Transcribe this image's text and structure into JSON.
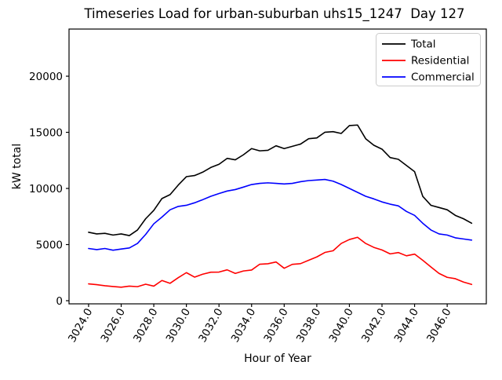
{
  "chart_data": {
    "type": "line",
    "title": "Timeseries Load for urban-suburban uhs15_1247  Day 127",
    "xlabel": "Hour of Year",
    "ylabel": "kW total",
    "legend_position": "upper right",
    "grid": false,
    "axes": {
      "xlim": [
        3022.8,
        3048.4
      ],
      "ylim": [
        -280,
        24200
      ],
      "x_ticks": [
        3024,
        3026,
        3028,
        3030,
        3032,
        3034,
        3036,
        3038,
        3040,
        3042,
        3044,
        3046
      ],
      "x_tick_decimals": 1,
      "x_tick_rotation_deg": 60,
      "y_ticks": [
        0,
        5000,
        10000,
        15000,
        20000
      ]
    },
    "x": [
      3024.0,
      3024.5,
      3025.0,
      3025.5,
      3026.0,
      3026.5,
      3027.0,
      3027.5,
      3028.0,
      3028.5,
      3029.0,
      3029.5,
      3030.0,
      3030.5,
      3031.0,
      3031.5,
      3032.0,
      3032.5,
      3033.0,
      3033.5,
      3034.0,
      3034.5,
      3035.0,
      3035.5,
      3036.0,
      3036.5,
      3037.0,
      3037.5,
      3038.0,
      3038.5,
      3039.0,
      3039.5,
      3040.0,
      3040.5,
      3041.0,
      3041.5,
      3042.0,
      3042.5,
      3043.0,
      3043.5,
      3044.0,
      3044.5,
      3045.0,
      3045.5,
      3046.0,
      3046.5,
      3047.0,
      3047.5
    ],
    "series": [
      {
        "name": "Total",
        "color": "#000000",
        "values": [
          6100,
          5950,
          6000,
          5850,
          5950,
          5800,
          6300,
          7300,
          8050,
          9100,
          9450,
          10300,
          11050,
          11150,
          11450,
          11870,
          12150,
          12680,
          12550,
          13000,
          13550,
          13350,
          13400,
          13800,
          13550,
          13750,
          13950,
          14430,
          14500,
          15010,
          15060,
          14900,
          15600,
          15650,
          14430,
          13850,
          13500,
          12750,
          12600,
          12050,
          11500,
          9300,
          8500,
          8300,
          8100,
          7600,
          7300,
          6900
        ]
      },
      {
        "name": "Residential",
        "color": "#ff0000",
        "values": [
          1500,
          1430,
          1330,
          1260,
          1200,
          1300,
          1250,
          1470,
          1300,
          1800,
          1550,
          2050,
          2500,
          2100,
          2360,
          2540,
          2550,
          2750,
          2430,
          2650,
          2730,
          3250,
          3290,
          3450,
          2890,
          3240,
          3300,
          3600,
          3900,
          4300,
          4450,
          5100,
          5450,
          5650,
          5100,
          4750,
          4520,
          4170,
          4290,
          4000,
          4150,
          3600,
          3010,
          2430,
          2080,
          1960,
          1660,
          1450
        ]
      },
      {
        "name": "Commercial",
        "color": "#0000ff",
        "values": [
          4650,
          4550,
          4650,
          4500,
          4600,
          4700,
          5100,
          5900,
          6850,
          7450,
          8100,
          8400,
          8500,
          8720,
          9000,
          9300,
          9550,
          9770,
          9900,
          10120,
          10350,
          10450,
          10500,
          10450,
          10400,
          10450,
          10600,
          10700,
          10750,
          10800,
          10650,
          10350,
          10000,
          9650,
          9300,
          9070,
          8800,
          8600,
          8450,
          7950,
          7600,
          6900,
          6300,
          5950,
          5850,
          5600,
          5500,
          5400
        ]
      }
    ]
  }
}
